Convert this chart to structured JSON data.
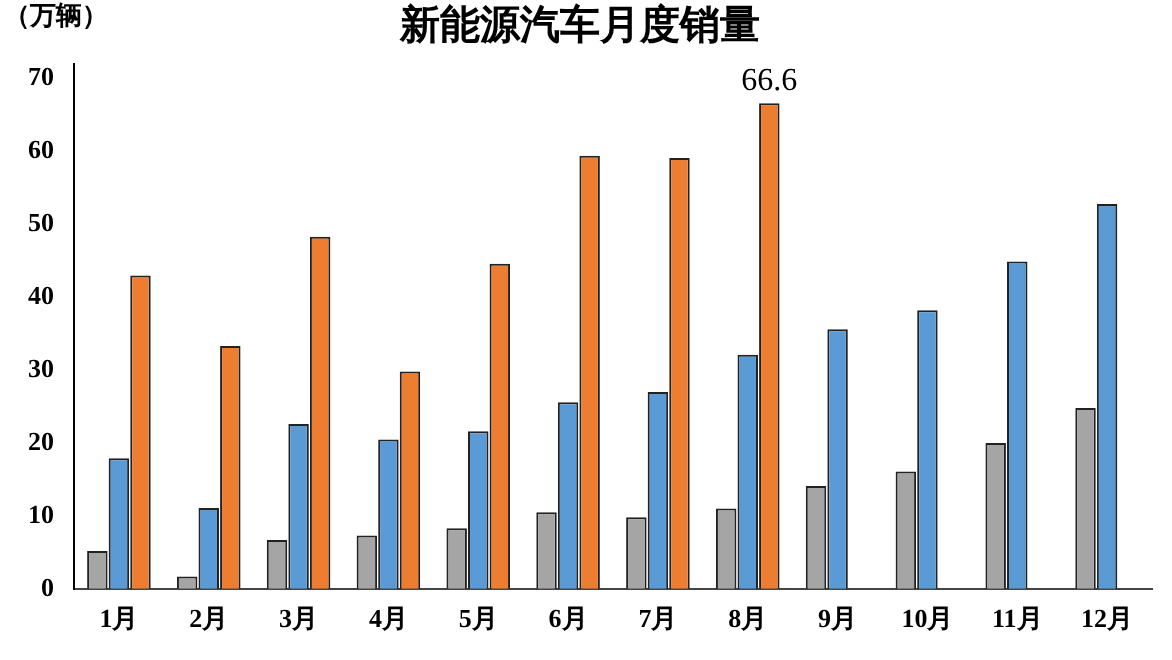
{
  "chart_data": {
    "type": "bar",
    "title": "新能源汽车月度销量",
    "ylabel": "（万辆）",
    "categories": [
      "1月",
      "2月",
      "3月",
      "4月",
      "5月",
      "6月",
      "7月",
      "8月",
      "9月",
      "10月",
      "11月",
      "12月"
    ],
    "series": [
      {
        "color": "#a5a5a5",
        "values": [
          5.2,
          1.7,
          6.7,
          7.3,
          8.3,
          10.5,
          9.8,
          11.0,
          14.1,
          16.1,
          20.0,
          24.8
        ]
      },
      {
        "color": "#5b9bd5",
        "values": [
          17.9,
          11.1,
          22.6,
          20.5,
          21.6,
          25.6,
          27.0,
          32.1,
          35.6,
          38.2,
          44.9,
          52.8
        ]
      },
      {
        "color": "#ed7d31",
        "values": [
          43.0,
          33.3,
          48.3,
          29.8,
          44.6,
          59.4,
          59.1,
          66.6,
          null,
          null,
          null,
          null
        ],
        "value_labels": [
          null,
          null,
          null,
          null,
          null,
          null,
          null,
          "66.6",
          null,
          null,
          null,
          null
        ]
      }
    ],
    "ylim": [
      0,
      72
    ],
    "yticks": [
      0,
      10,
      20,
      30,
      40,
      50,
      60,
      70
    ],
    "grid": false,
    "legend": false
  }
}
